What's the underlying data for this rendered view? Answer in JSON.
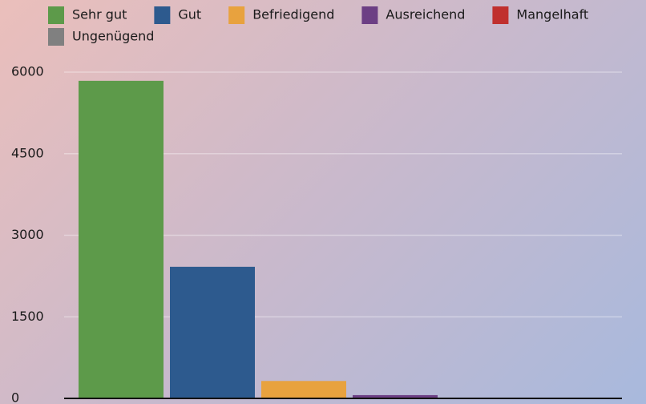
{
  "chart_data": {
    "type": "bar",
    "categories": [
      null
    ],
    "series": [
      {
        "name": "Sehr gut",
        "color": "#5d9a4a",
        "values": [
          5840
        ]
      },
      {
        "name": "Gut",
        "color": "#2d5a8e",
        "values": [
          2420
        ]
      },
      {
        "name": "Befriedigend",
        "color": "#e8a23e",
        "values": [
          320
        ]
      },
      {
        "name": "Ausreichend",
        "color": "#6c3f84",
        "values": [
          60
        ]
      },
      {
        "name": "Mangelhaft",
        "color": "#c0302e",
        "values": [
          0
        ]
      },
      {
        "name": "Ungenügend",
        "color": "#808080",
        "values": [
          0
        ]
      }
    ],
    "ylim": [
      0,
      6000
    ],
    "yticks": [
      0,
      1500,
      3000,
      4500,
      6000
    ],
    "grid": true,
    "legend": "top"
  }
}
